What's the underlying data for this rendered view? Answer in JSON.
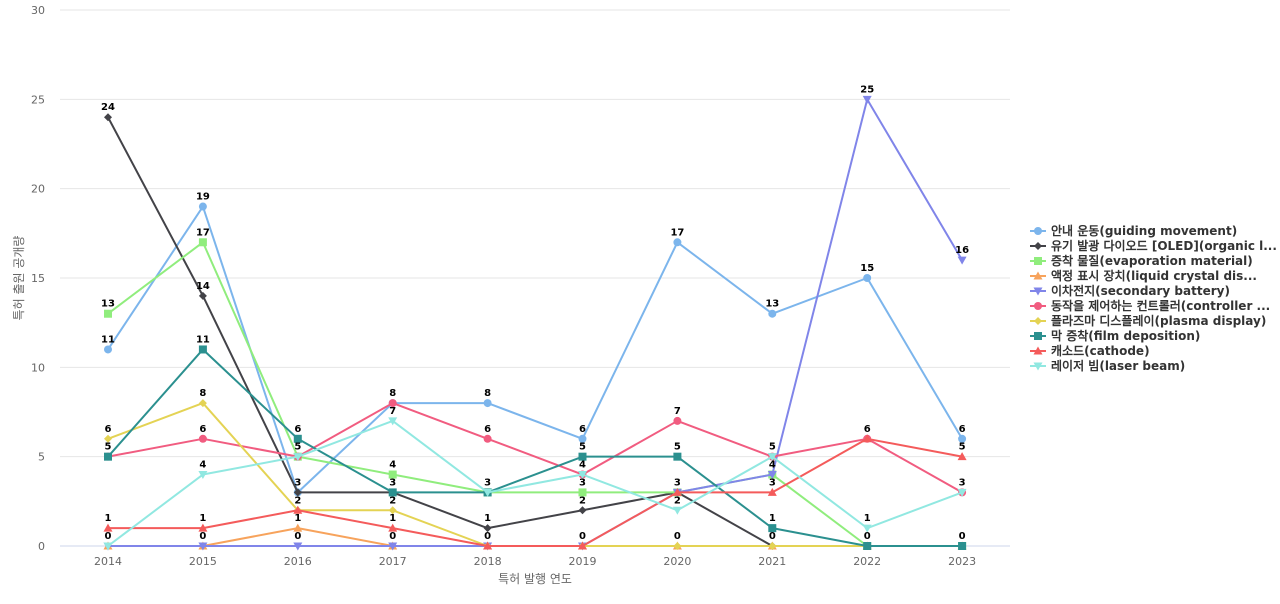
{
  "chart_data": {
    "type": "line",
    "title": "",
    "xlabel": "특허 발행 연도",
    "ylabel": "특허 출원 공개량",
    "ylim": [
      0,
      30
    ],
    "yticks": [
      0,
      5,
      10,
      15,
      20,
      25,
      30
    ],
    "grid": true,
    "legend_position": "right",
    "categories": [
      "2014",
      "2015",
      "2016",
      "2017",
      "2018",
      "2019",
      "2020",
      "2021",
      "2022",
      "2023"
    ],
    "series": [
      {
        "name": "안내 운동(guiding movement)",
        "color": "#7cb5ec",
        "marker": "circle",
        "values": [
          11,
          19,
          3,
          8,
          8,
          6,
          17,
          13,
          15,
          6
        ]
      },
      {
        "name": "유기 발광 다이오드 [OLED](organic l...",
        "color": "#434348",
        "marker": "diamond",
        "values": [
          24,
          14,
          3,
          3,
          1,
          2,
          3,
          0,
          0,
          0
        ]
      },
      {
        "name": "증착 물질(evaporation material)",
        "color": "#90ed7d",
        "marker": "square",
        "values": [
          13,
          17,
          5,
          4,
          3,
          3,
          3,
          4,
          0,
          0
        ]
      },
      {
        "name": "액정 표시 장치(liquid crystal dis...",
        "color": "#f7a35c",
        "marker": "triangle",
        "values": [
          0,
          0,
          1,
          0,
          0,
          0,
          0,
          0,
          0,
          0
        ]
      },
      {
        "name": "이차전지(secondary battery)",
        "color": "#8085e9",
        "marker": "triangle-down",
        "values": [
          0,
          0,
          0,
          0,
          0,
          0,
          3,
          4,
          25,
          16
        ]
      },
      {
        "name": "동작을 제어하는 컨트롤러(controller ...",
        "color": "#f15c80",
        "marker": "circle",
        "values": [
          5,
          6,
          5,
          8,
          6,
          4,
          7,
          5,
          6,
          3
        ]
      },
      {
        "name": "플라즈마 디스플레이(plasma display)",
        "color": "#e4d354",
        "marker": "diamond",
        "values": [
          6,
          8,
          2,
          2,
          0,
          0,
          0,
          0,
          0,
          0
        ]
      },
      {
        "name": "막 증착(film deposition)",
        "color": "#2b908f",
        "marker": "square",
        "values": [
          5,
          11,
          6,
          3,
          3,
          5,
          5,
          1,
          0,
          0
        ]
      },
      {
        "name": "캐소드(cathode)",
        "color": "#f45b5b",
        "marker": "triangle",
        "values": [
          1,
          1,
          2,
          1,
          0,
          0,
          3,
          3,
          6,
          5
        ]
      },
      {
        "name": "레이저 빔(laser beam)",
        "color": "#91e8e1",
        "marker": "triangle-down",
        "values": [
          0,
          4,
          5,
          7,
          3,
          4,
          2,
          5,
          1,
          3
        ]
      }
    ],
    "data_labels": [
      {
        "series": 1,
        "x": "2014",
        "text": "24"
      },
      {
        "series": 2,
        "x": "2014",
        "text": "13"
      },
      {
        "series": 0,
        "x": "2014",
        "text": "11"
      },
      {
        "series": 6,
        "x": "2014",
        "text": "6"
      },
      {
        "series": 7,
        "x": "2014",
        "text": "5"
      },
      {
        "series": 8,
        "x": "2014",
        "text": "1"
      },
      {
        "series": 9,
        "x": "2014",
        "text": "0"
      },
      {
        "series": 0,
        "x": "2015",
        "text": "19"
      },
      {
        "series": 2,
        "x": "2015",
        "text": "17"
      },
      {
        "series": 1,
        "x": "2015",
        "text": "14"
      },
      {
        "series": 7,
        "x": "2015",
        "text": "11"
      },
      {
        "series": 6,
        "x": "2015",
        "text": "8"
      },
      {
        "series": 5,
        "x": "2015",
        "text": "6"
      },
      {
        "series": 9,
        "x": "2015",
        "text": "4"
      },
      {
        "series": 8,
        "x": "2015",
        "text": "1"
      },
      {
        "series": 3,
        "x": "2015",
        "text": "0"
      },
      {
        "series": 7,
        "x": "2016",
        "text": "6"
      },
      {
        "series": 5,
        "x": "2016",
        "text": "5"
      },
      {
        "series": 1,
        "x": "2016",
        "text": "3"
      },
      {
        "series": 6,
        "x": "2016",
        "text": "2"
      },
      {
        "series": 3,
        "x": "2016",
        "text": "1"
      },
      {
        "series": 4,
        "x": "2016",
        "text": "0"
      },
      {
        "series": 5,
        "x": "2017",
        "text": "8"
      },
      {
        "series": 9,
        "x": "2017",
        "text": "7"
      },
      {
        "series": 2,
        "x": "2017",
        "text": "4"
      },
      {
        "series": 7,
        "x": "2017",
        "text": "3"
      },
      {
        "series": 6,
        "x": "2017",
        "text": "2"
      },
      {
        "series": 8,
        "x": "2017",
        "text": "1"
      },
      {
        "series": 3,
        "x": "2017",
        "text": "0"
      },
      {
        "series": 0,
        "x": "2018",
        "text": "8"
      },
      {
        "series": 5,
        "x": "2018",
        "text": "6"
      },
      {
        "series": 7,
        "x": "2018",
        "text": "3"
      },
      {
        "series": 1,
        "x": "2018",
        "text": "1"
      },
      {
        "series": 8,
        "x": "2018",
        "text": "0"
      },
      {
        "series": 0,
        "x": "2019",
        "text": "6"
      },
      {
        "series": 7,
        "x": "2019",
        "text": "5"
      },
      {
        "series": 9,
        "x": "2019",
        "text": "4"
      },
      {
        "series": 2,
        "x": "2019",
        "text": "3"
      },
      {
        "series": 1,
        "x": "2019",
        "text": "2"
      },
      {
        "series": 8,
        "x": "2019",
        "text": "0"
      },
      {
        "series": 0,
        "x": "2020",
        "text": "17"
      },
      {
        "series": 5,
        "x": "2020",
        "text": "7"
      },
      {
        "series": 7,
        "x": "2020",
        "text": "5"
      },
      {
        "series": 1,
        "x": "2020",
        "text": "3"
      },
      {
        "series": 9,
        "x": "2020",
        "text": "2"
      },
      {
        "series": 6,
        "x": "2020",
        "text": "0"
      },
      {
        "series": 0,
        "x": "2021",
        "text": "13"
      },
      {
        "series": 5,
        "x": "2021",
        "text": "5"
      },
      {
        "series": 4,
        "x": "2021",
        "text": "4"
      },
      {
        "series": 8,
        "x": "2021",
        "text": "3"
      },
      {
        "series": 7,
        "x": "2021",
        "text": "1"
      },
      {
        "series": 1,
        "x": "2021",
        "text": "0"
      },
      {
        "series": 4,
        "x": "2022",
        "text": "25"
      },
      {
        "series": 0,
        "x": "2022",
        "text": "15"
      },
      {
        "series": 5,
        "x": "2022",
        "text": "6"
      },
      {
        "series": 9,
        "x": "2022",
        "text": "1"
      },
      {
        "series": 1,
        "x": "2022",
        "text": "0"
      },
      {
        "series": 4,
        "x": "2023",
        "text": "16"
      },
      {
        "series": 0,
        "x": "2023",
        "text": "6"
      },
      {
        "series": 8,
        "x": "2023",
        "text": "5"
      },
      {
        "series": 5,
        "x": "2023",
        "text": "3"
      },
      {
        "series": 1,
        "x": "2023",
        "text": "0"
      }
    ]
  }
}
